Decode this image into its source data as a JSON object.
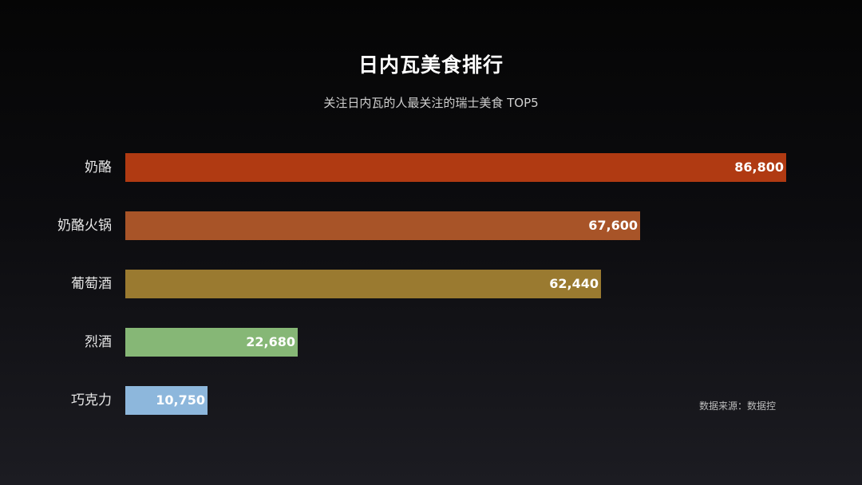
{
  "chart_data": {
    "type": "bar",
    "orientation": "horizontal",
    "title": "日内瓦美食排行",
    "subtitle": "关注日内瓦的人最关注的瑞士美食 TOP5",
    "categories": [
      "奶酪",
      "奶酪火锅",
      "葡萄酒",
      "烈酒",
      "巧克力"
    ],
    "values": [
      86800,
      67600,
      62440,
      22680,
      10750
    ],
    "value_labels": [
      "86,800",
      "67,600",
      "62,440",
      "22,680",
      "10,750"
    ],
    "colors": [
      "#b03a12",
      "#a85428",
      "#9a7a30",
      "#86b776",
      "#8db7dc"
    ],
    "xlim": [
      0,
      86800
    ],
    "grid": false,
    "legend": "none",
    "source": "数据来源：数据控"
  }
}
